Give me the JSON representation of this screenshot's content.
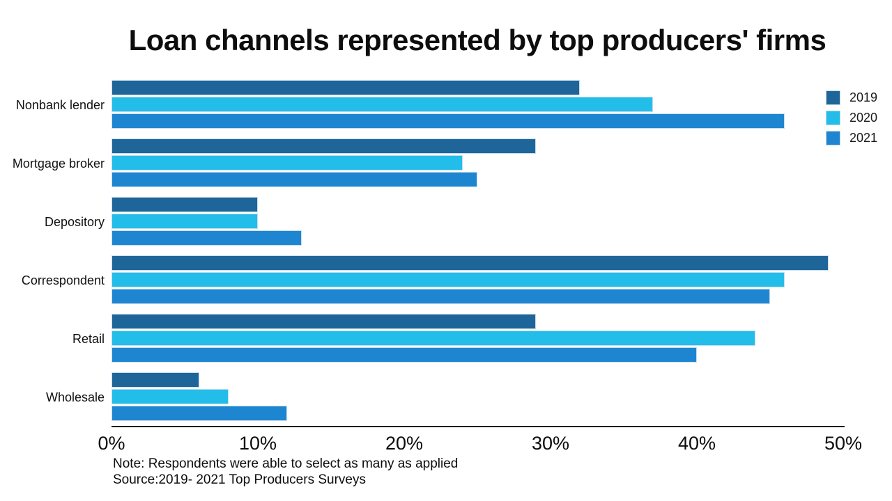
{
  "title": "Loan channels represented by top producers' firms",
  "note": "Note: Respondents were able to select as many as applied",
  "source": "Source:2019- 2021 Top Producers Surveys",
  "colors": {
    "series_2019": "#1e6599",
    "series_2020": "#22bde9",
    "series_2021": "#1e86d1",
    "bar_border": "#c6dcee",
    "axis": "#1a1a1a",
    "text": "#0d0d0d"
  },
  "legend": {
    "position": "upper right",
    "items": [
      {
        "label": "2019",
        "color": "#1e6599"
      },
      {
        "label": "2020",
        "color": "#22bde9"
      },
      {
        "label": "2021",
        "color": "#1e86d1"
      }
    ]
  },
  "chart_data": {
    "type": "bar",
    "orientation": "horizontal",
    "title": "Loan channels represented by top producers' firms",
    "xlabel": "",
    "ylabel": "",
    "xlim": [
      0,
      50
    ],
    "xticks": [
      "0%",
      "10%",
      "20%",
      "30%",
      "40%",
      "50%"
    ],
    "xtick_values": [
      0,
      10,
      20,
      30,
      40,
      50
    ],
    "grid": false,
    "categories": [
      "Nonbank lender",
      "Mortgage broker",
      "Depository",
      "Correspondent",
      "Retail",
      "Wholesale"
    ],
    "series": [
      {
        "name": "2019",
        "color": "#1e6599",
        "values": [
          32,
          29,
          10,
          49,
          29,
          6
        ]
      },
      {
        "name": "2020",
        "color": "#22bde9",
        "values": [
          37,
          24,
          10,
          46,
          44,
          8
        ]
      },
      {
        "name": "2021",
        "color": "#1e86d1",
        "values": [
          46,
          25,
          13,
          45,
          40,
          12
        ]
      }
    ]
  }
}
